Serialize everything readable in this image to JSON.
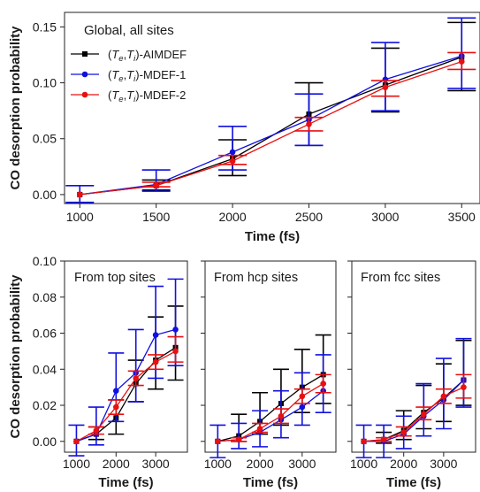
{
  "colors": {
    "aimdef": "#000000",
    "mdef1": "#1010e0",
    "mdef2": "#e81010"
  },
  "chart_data": [
    {
      "type": "line",
      "title": "Global, all sites",
      "xlabel": "Time (fs)",
      "ylabel": "CO desorption probability",
      "xlim": [
        900,
        3620
      ],
      "ylim": [
        -0.008,
        0.163
      ],
      "xticks": [
        1000,
        1500,
        2000,
        2500,
        3000,
        3500
      ],
      "yticks": [
        "0.00",
        "0.05",
        "0.10",
        "0.15"
      ],
      "yticks_values": [
        0.0,
        0.05,
        0.1,
        0.15
      ],
      "x": [
        1000,
        1500,
        2000,
        2500,
        3000,
        3500
      ],
      "legend_position": "top-left",
      "series": [
        {
          "name": "(Te,Ti)-AIMDEF",
          "color_key": "aimdef",
          "marker": "square",
          "values": [
            0.0,
            0.008,
            0.032,
            0.072,
            0.098,
            0.123
          ],
          "err_low": [
            0.0,
            0.004,
            0.017,
            0.044,
            0.074,
            0.093
          ],
          "err_high": [
            0.0,
            0.013,
            0.049,
            0.1,
            0.131,
            0.154
          ]
        },
        {
          "name": "(Te,Ti)-MDEF-1",
          "color_key": "mdef1",
          "marker": "circle",
          "values": [
            0.0,
            0.009,
            0.038,
            0.067,
            0.103,
            0.124
          ],
          "err_low": [
            -0.007,
            0.003,
            0.022,
            0.044,
            0.075,
            0.095
          ],
          "err_high": [
            0.008,
            0.022,
            0.061,
            0.09,
            0.136,
            0.158
          ]
        },
        {
          "name": "(Te,Ti)-MDEF-2",
          "color_key": "mdef2",
          "marker": "circle",
          "values": [
            0.0,
            0.008,
            0.03,
            0.063,
            0.096,
            0.119
          ],
          "err_low": [
            0.0,
            0.007,
            0.027,
            0.057,
            0.088,
            0.112
          ],
          "err_high": [
            0.0,
            0.011,
            0.035,
            0.069,
            0.102,
            0.127
          ]
        }
      ]
    },
    {
      "type": "line",
      "title": "From top sites",
      "xlabel": "Time (fs)",
      "ylabel": "CO desorption probability",
      "xlim": [
        700,
        3800
      ],
      "ylim": [
        -0.006,
        0.1
      ],
      "xticks": [
        1000,
        2000,
        3000
      ],
      "yticks": [
        "0.00",
        "0.02",
        "0.04",
        "0.06",
        "0.08",
        "0.10"
      ],
      "yticks_values": [
        0.0,
        0.02,
        0.04,
        0.06,
        0.08,
        0.1
      ],
      "x": [
        1000,
        1500,
        2000,
        2500,
        3000,
        3500
      ],
      "series": [
        {
          "name": "(Te,Ti)-AIMDEF",
          "color_key": "aimdef",
          "marker": "square",
          "values": [
            0.0,
            0.004,
            0.013,
            0.032,
            0.045,
            0.052
          ],
          "err_low": [
            0.0,
            0.001,
            0.004,
            0.022,
            0.029,
            0.034
          ],
          "err_high": [
            0.0,
            0.008,
            0.023,
            0.045,
            0.069,
            0.075
          ]
        },
        {
          "name": "(Te,Ti)-MDEF-1",
          "color_key": "mdef1",
          "marker": "circle",
          "values": [
            0.0,
            0.004,
            0.028,
            0.038,
            0.059,
            0.062
          ],
          "err_low": [
            -0.008,
            -0.002,
            0.011,
            0.022,
            0.035,
            0.042
          ],
          "err_high": [
            0.009,
            0.019,
            0.049,
            0.062,
            0.086,
            0.09
          ]
        },
        {
          "name": "(Te,Ti)-MDEF-2",
          "color_key": "mdef2",
          "marker": "circle",
          "values": [
            0.0,
            0.006,
            0.019,
            0.035,
            0.044,
            0.05
          ],
          "err_low": [
            0.0,
            0.004,
            0.015,
            0.031,
            0.04,
            0.044
          ],
          "err_high": [
            0.0,
            0.008,
            0.023,
            0.039,
            0.048,
            0.058
          ]
        }
      ]
    },
    {
      "type": "line",
      "title": "From hcp sites",
      "xlabel": "Time (fs)",
      "ylabel": "",
      "xlim": [
        700,
        3800
      ],
      "ylim": [
        -0.006,
        0.1
      ],
      "xticks": [
        1000,
        2000,
        3000
      ],
      "yticks": [],
      "yticks_values": [
        0.0,
        0.02,
        0.04,
        0.06,
        0.08,
        0.1
      ],
      "x": [
        1000,
        1500,
        2000,
        2500,
        3000,
        3500
      ],
      "series": [
        {
          "name": "(Te,Ti)-AIMDEF",
          "color_key": "aimdef",
          "marker": "square",
          "values": [
            0.0,
            0.003,
            0.011,
            0.021,
            0.03,
            0.037
          ],
          "err_low": [
            0.0,
            0.0,
            0.004,
            0.009,
            0.016,
            0.021
          ],
          "err_high": [
            0.0,
            0.015,
            0.027,
            0.04,
            0.051,
            0.059
          ]
        },
        {
          "name": "(Te,Ti)-MDEF-1",
          "color_key": "mdef1",
          "marker": "circle",
          "values": [
            0.0,
            0.001,
            0.005,
            0.012,
            0.019,
            0.028
          ],
          "err_low": [
            -0.009,
            -0.004,
            -0.003,
            0.002,
            0.009,
            0.016
          ],
          "err_high": [
            0.009,
            0.01,
            0.017,
            0.028,
            0.038,
            0.048
          ]
        },
        {
          "name": "(Te,Ti)-MDEF-2",
          "color_key": "mdef2",
          "marker": "circle",
          "values": [
            0.0,
            0.001,
            0.007,
            0.014,
            0.025,
            0.032
          ],
          "err_low": [
            0.0,
            0.0,
            0.005,
            0.01,
            0.021,
            0.027
          ],
          "err_high": [
            0.0,
            0.002,
            0.01,
            0.018,
            0.029,
            0.037
          ]
        }
      ]
    },
    {
      "type": "line",
      "title": "From fcc sites",
      "xlabel": "Time (fs)",
      "ylabel": "",
      "xlim": [
        700,
        3800
      ],
      "ylim": [
        -0.006,
        0.1
      ],
      "xticks": [
        1000,
        2000,
        3000
      ],
      "yticks": [],
      "yticks_values": [
        0.0,
        0.02,
        0.04,
        0.06,
        0.08,
        0.1
      ],
      "x": [
        1000,
        1500,
        2000,
        2500,
        3000,
        3500
      ],
      "series": [
        {
          "name": "(Te,Ti)-AIMDEF",
          "color_key": "aimdef",
          "marker": "square",
          "values": [
            0.0,
            0.001,
            0.006,
            0.016,
            0.024,
            0.034
          ],
          "err_low": [
            0.0,
            -0.001,
            0.001,
            0.007,
            0.011,
            0.02
          ],
          "err_high": [
            0.0,
            0.005,
            0.017,
            0.031,
            0.043,
            0.056
          ]
        },
        {
          "name": "(Te,Ti)-MDEF-1",
          "color_key": "mdef1",
          "marker": "circle",
          "values": [
            0.0,
            0.0,
            0.004,
            0.014,
            0.023,
            0.034
          ],
          "err_low": [
            -0.009,
            -0.009,
            -0.004,
            0.003,
            0.007,
            0.019
          ],
          "err_high": [
            0.009,
            0.009,
            0.014,
            0.032,
            0.046,
            0.057
          ]
        },
        {
          "name": "(Te,Ti)-MDEF-2",
          "color_key": "mdef2",
          "marker": "circle",
          "values": [
            0.0,
            0.001,
            0.005,
            0.015,
            0.025,
            0.03
          ],
          "err_low": [
            0.0,
            0.0,
            0.003,
            0.012,
            0.021,
            0.024
          ],
          "err_high": [
            0.0,
            0.002,
            0.008,
            0.019,
            0.029,
            0.037
          ]
        }
      ]
    }
  ]
}
